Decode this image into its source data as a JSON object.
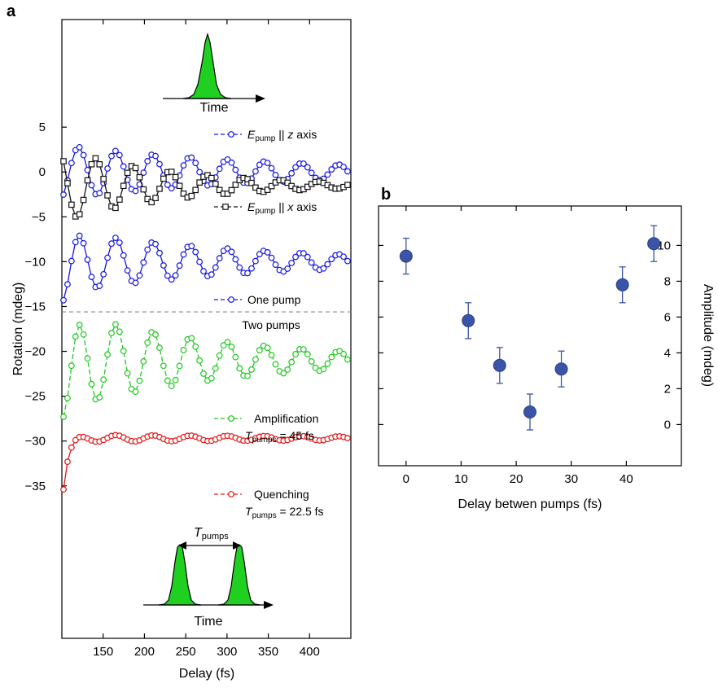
{
  "panel_a_label": "a",
  "panel_b_label": "b",
  "chart_data": [
    {
      "type": "line",
      "panel": "a",
      "xlabel": "Delay (fs)",
      "ylabel": "Rotation (mdeg)",
      "xlim": [
        100,
        450
      ],
      "ylim": [
        -52,
        17
      ],
      "xticks": [
        150,
        200,
        250,
        300,
        350,
        400
      ],
      "yticks": [
        5,
        0,
        -5,
        -10,
        -15,
        -20,
        -25,
        -30,
        -35
      ],
      "colors": {
        "blue": "#1515e6",
        "black": "#111111",
        "green": "#1ec81e",
        "red": "#e61414",
        "dashed": "#888888"
      },
      "separator": {
        "y": -15.6,
        "label": "Two pumps"
      },
      "inset_top": {
        "label": "Time"
      },
      "inset_bottom": {
        "label": "Time",
        "interval_label_main": "T",
        "interval_label_sub": "pumps"
      },
      "series": [
        {
          "name": "E_pump || z axis",
          "legend_main": "E",
          "legend_sub": "pump",
          "legend_suffix": " || z axis",
          "color": "#1515e6",
          "marker": "circle",
          "offset": 0,
          "baseline": 0,
          "amp0": 3.0,
          "decay": 260,
          "period": 45,
          "phase": -1.0
        },
        {
          "name": "E_pump || x axis",
          "legend_main": "E",
          "legend_sub": "pump",
          "legend_suffix": " || x axis",
          "color": "#111111",
          "marker": "square",
          "offset": 0,
          "baseline": -1.5,
          "amp0": 4.0,
          "decay": 140,
          "period": 45,
          "phase": 2.4
        },
        {
          "name": "One pump",
          "legend": "One pump",
          "color": "#1515e6",
          "marker": "circle",
          "offset": -10,
          "baseline": 0,
          "amp0": 3.5,
          "decay": 230,
          "period": 45,
          "phase": -1.0,
          "rise": 6
        },
        {
          "name": "Amplification",
          "legend": "Amplification",
          "legend2_main": "T",
          "legend2_sub": "pumps",
          "legend2_suffix": " = 45 fs",
          "color": "#1ec81e",
          "marker": "circle",
          "offset": -21,
          "baseline": 0,
          "amp0": 5.5,
          "decay": 200,
          "period": 45,
          "phase": -1.0,
          "rise": 8
        },
        {
          "name": "Quenching",
          "legend": "Quenching",
          "legend2_main": "T",
          "legend2_sub": "pumps",
          "legend2_suffix": " = 22.5 fs",
          "color": "#e61414",
          "marker": "circle",
          "offset": -29.8,
          "baseline": 0.1,
          "amp0": 0.4,
          "decay": 600,
          "period": 45,
          "phase": -1.0,
          "rise": 6
        }
      ]
    },
    {
      "type": "scatter",
      "panel": "b",
      "xlabel": "Delay betwen pumps (fs)",
      "ylabel": "Amplitude (mdeg)",
      "xlim": [
        -5,
        50
      ],
      "ylim": [
        -2.3,
        12.2
      ],
      "xticks": [
        0,
        10,
        20,
        30,
        40
      ],
      "yticks": [
        0,
        2,
        4,
        6,
        8,
        10
      ],
      "color": "#3a55a8",
      "points": [
        {
          "x": 0,
          "y": 9.4,
          "err": 1.0
        },
        {
          "x": 11.3,
          "y": 5.8,
          "err": 1.0
        },
        {
          "x": 17,
          "y": 3.3,
          "err": 1.0
        },
        {
          "x": 22.5,
          "y": 0.7,
          "err": 1.0
        },
        {
          "x": 28.2,
          "y": 3.1,
          "err": 1.0
        },
        {
          "x": 39.3,
          "y": 7.8,
          "err": 1.0
        },
        {
          "x": 45,
          "y": 10.1,
          "err": 1.0
        }
      ]
    }
  ]
}
